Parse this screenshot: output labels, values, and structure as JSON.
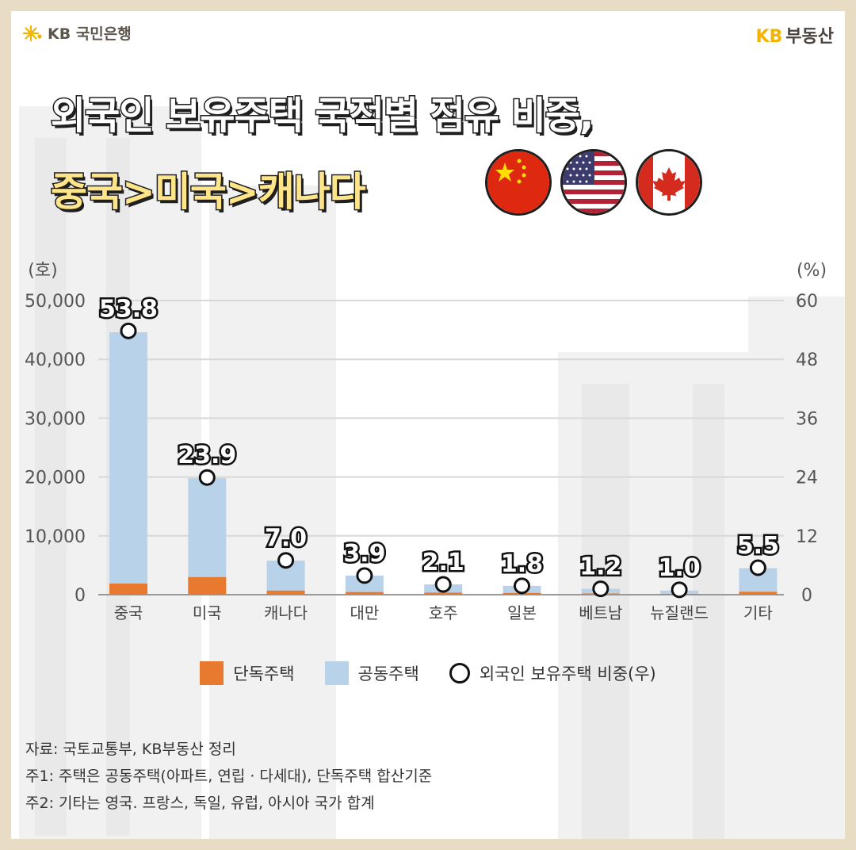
{
  "brand": {
    "left_logo": "KB 국민은행",
    "right_kb": "KB",
    "right_name": "부동산"
  },
  "title": {
    "line1": "외국인 보유주택 국적별 점유 비중,",
    "line2": "중국>미국>캐나다"
  },
  "flags": [
    "china-flag-icon",
    "usa-flag-icon",
    "canada-flag-icon"
  ],
  "colors": {
    "detached": "#e87a30",
    "apartment": "#b8d2ea",
    "accent": "#f2b400"
  },
  "chart_data": {
    "type": "bar",
    "left_unit": "(호)",
    "right_unit": "(%)",
    "categories": [
      "중국",
      "미국",
      "캐나다",
      "대만",
      "호주",
      "일본",
      "베트남",
      "뉴질랜드",
      "기타"
    ],
    "left_ylim": [
      0,
      50000
    ],
    "left_ticks": [
      "0",
      "10,000",
      "20,000",
      "30,000",
      "40,000",
      "50,000"
    ],
    "right_ylim": [
      0,
      60
    ],
    "right_ticks": [
      "0",
      "12",
      "24",
      "36",
      "48",
      "60"
    ],
    "series": [
      {
        "name": "단독주택",
        "type": "bar",
        "values": [
          1900,
          3000,
          700,
          450,
          350,
          300,
          200,
          150,
          500
        ]
      },
      {
        "name": "공동주택",
        "type": "bar",
        "values": [
          42700,
          16800,
          5100,
          2800,
          1400,
          1200,
          800,
          550,
          4000
        ]
      },
      {
        "name": "외국인 보유주택 비중(우)",
        "type": "scatter",
        "values": [
          53.8,
          23.9,
          7.0,
          3.9,
          2.1,
          1.8,
          1.2,
          1.0,
          5.5
        ],
        "labels": [
          "53.8",
          "23.9",
          "7.0",
          "3.9",
          "2.1",
          "1.8",
          "1.2",
          "1.0",
          "5.5"
        ]
      }
    ],
    "grid": true,
    "legend_position": "bottom"
  },
  "notes": [
    "자료: 국토교통부, KB부동산 정리",
    "주1: 주택은 공동주택(아파트, 연립 · 다세대), 단독주택 합산기준",
    "주2: 기타는 영국. 프랑스, 독일, 유럽, 아시아 국가 합계"
  ]
}
